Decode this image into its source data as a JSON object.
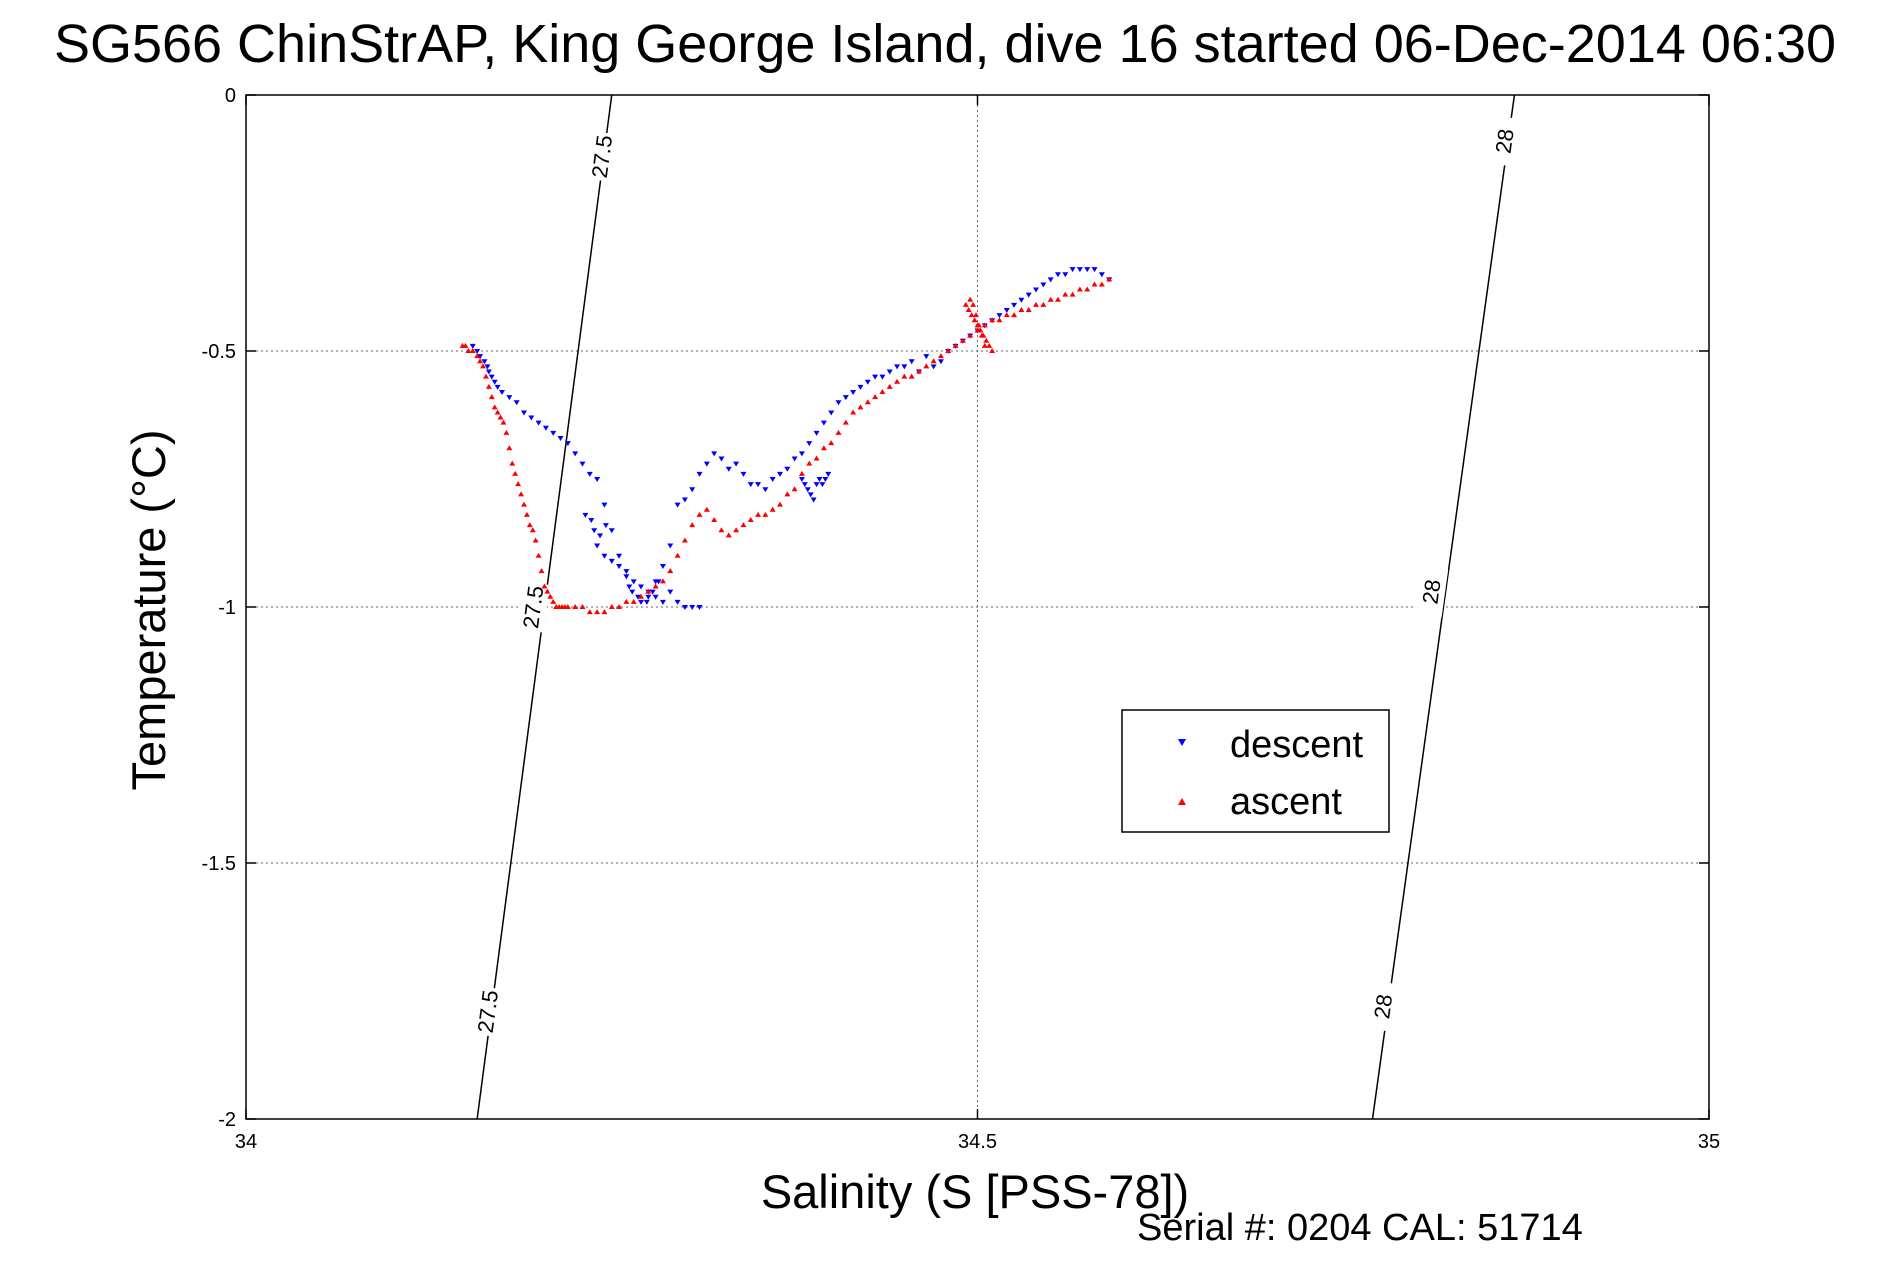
{
  "chart_data": {
    "type": "scatter",
    "title": "SG566 ChinStrAP, King George Island, dive 16 started 06-Dec-2014 06:30",
    "xlabel": "Salinity (S [PSS-78])",
    "ylabel": "Temperature (°C)",
    "xlim": [
      34,
      35
    ],
    "ylim": [
      -2,
      0
    ],
    "xticks": [
      34,
      34.5,
      35
    ],
    "xtick_labels": [
      "34",
      "34.5",
      "35"
    ],
    "yticks": [
      0,
      -0.5,
      -1,
      -1.5,
      -2
    ],
    "ytick_labels": [
      "0",
      "-0.5",
      "-1",
      "-1.5",
      "-2"
    ],
    "grid": true,
    "legend_position": "center-right",
    "series": [
      {
        "name": "descent",
        "color": "#0000ff",
        "marker": "triangle-down",
        "x": [
          34.155,
          34.158,
          34.16,
          34.163,
          34.165,
          34.166,
          34.168,
          34.17,
          34.172,
          34.175,
          34.18,
          34.185,
          34.19,
          34.195,
          34.2,
          34.205,
          34.21,
          34.215,
          34.22,
          34.225,
          34.23,
          34.235,
          34.24,
          34.245,
          34.232,
          34.236,
          34.238,
          34.242,
          34.246,
          34.25,
          34.255,
          34.26,
          34.264,
          34.27,
          34.275,
          34.28,
          34.285,
          34.29,
          34.295,
          34.3,
          34.305,
          34.31,
          34.315,
          34.32,
          34.325,
          34.33,
          34.335,
          34.34,
          34.345,
          34.35,
          34.355,
          34.36,
          34.365,
          34.37,
          34.375,
          34.38,
          34.385,
          34.39,
          34.395,
          34.4,
          34.405,
          34.41,
          34.415,
          34.42,
          34.425,
          34.43,
          34.435,
          34.44,
          34.445,
          34.45,
          34.455,
          34.46,
          34.465,
          34.47,
          34.475,
          34.48,
          34.485,
          34.49,
          34.495,
          34.5,
          34.505,
          34.51,
          34.515,
          34.52,
          34.525,
          34.53,
          34.535,
          34.54,
          34.545,
          34.55,
          34.555,
          34.56,
          34.565,
          34.57,
          34.575,
          34.58,
          34.585,
          34.59,
          34.38,
          34.382,
          34.384,
          34.386,
          34.388,
          34.39,
          34.392,
          34.394,
          34.396,
          34.398,
          34.29,
          34.295,
          34.3,
          34.305,
          34.31,
          34.285,
          34.28,
          34.275,
          34.27,
          34.265,
          34.26,
          34.255,
          34.25,
          34.245,
          34.24,
          34.262,
          34.268,
          34.274,
          34.278,
          34.282
        ],
        "y": [
          -0.49,
          -0.5,
          -0.51,
          -0.52,
          -0.53,
          -0.54,
          -0.55,
          -0.56,
          -0.57,
          -0.58,
          -0.59,
          -0.6,
          -0.62,
          -0.63,
          -0.64,
          -0.65,
          -0.66,
          -0.67,
          -0.68,
          -0.7,
          -0.72,
          -0.74,
          -0.75,
          -0.8,
          -0.82,
          -0.83,
          -0.85,
          -0.86,
          -0.84,
          -0.85,
          -0.9,
          -0.94,
          -0.97,
          -0.99,
          -0.98,
          -0.95,
          -0.92,
          -0.88,
          -0.8,
          -0.79,
          -0.77,
          -0.74,
          -0.72,
          -0.7,
          -0.71,
          -0.73,
          -0.72,
          -0.74,
          -0.76,
          -0.76,
          -0.77,
          -0.75,
          -0.74,
          -0.73,
          -0.71,
          -0.7,
          -0.68,
          -0.66,
          -0.64,
          -0.62,
          -0.6,
          -0.59,
          -0.58,
          -0.57,
          -0.56,
          -0.55,
          -0.55,
          -0.54,
          -0.53,
          -0.53,
          -0.52,
          -0.54,
          -0.51,
          -0.53,
          -0.52,
          -0.5,
          -0.49,
          -0.48,
          -0.47,
          -0.46,
          -0.45,
          -0.44,
          -0.43,
          -0.42,
          -0.41,
          -0.4,
          -0.39,
          -0.38,
          -0.37,
          -0.36,
          -0.35,
          -0.35,
          -0.34,
          -0.34,
          -0.34,
          -0.34,
          -0.35,
          -0.36,
          -0.75,
          -0.76,
          -0.77,
          -0.78,
          -0.79,
          -0.76,
          -0.75,
          -0.76,
          -0.75,
          -0.74,
          -0.97,
          -0.99,
          -1.0,
          -1.0,
          -1.0,
          -0.99,
          -0.98,
          -0.97,
          -0.96,
          -0.95,
          -0.93,
          -0.92,
          -0.91,
          -0.9,
          -0.88,
          -0.96,
          -0.98,
          -0.99,
          -0.97,
          -0.95
        ]
      },
      {
        "name": "ascent",
        "color": "#ff0000",
        "marker": "triangle-up",
        "x": [
          34.148,
          34.15,
          34.152,
          34.155,
          34.158,
          34.16,
          34.162,
          34.164,
          34.166,
          34.168,
          34.17,
          34.172,
          34.174,
          34.176,
          34.178,
          34.18,
          34.182,
          34.184,
          34.186,
          34.188,
          34.19,
          34.192,
          34.194,
          34.196,
          34.198,
          34.2,
          34.202,
          34.204,
          34.206,
          34.208,
          34.21,
          34.212,
          34.214,
          34.216,
          34.218,
          34.22,
          34.225,
          34.23,
          34.235,
          34.24,
          34.245,
          34.25,
          34.255,
          34.26,
          34.265,
          34.27,
          34.275,
          34.28,
          34.285,
          34.29,
          34.295,
          34.3,
          34.305,
          34.31,
          34.315,
          34.32,
          34.325,
          34.33,
          34.335,
          34.34,
          34.345,
          34.35,
          34.355,
          34.36,
          34.365,
          34.37,
          34.375,
          34.38,
          34.385,
          34.39,
          34.395,
          34.4,
          34.405,
          34.41,
          34.415,
          34.42,
          34.425,
          34.43,
          34.435,
          34.44,
          34.445,
          34.45,
          34.455,
          34.46,
          34.465,
          34.47,
          34.475,
          34.48,
          34.485,
          34.49,
          34.495,
          34.5,
          34.505,
          34.51,
          34.515,
          34.52,
          34.525,
          34.53,
          34.535,
          34.54,
          34.545,
          34.55,
          34.555,
          34.56,
          34.565,
          34.57,
          34.575,
          34.58,
          34.585,
          34.59,
          34.492,
          34.494,
          34.496,
          34.498,
          34.5,
          34.502,
          34.504,
          34.506,
          34.508,
          34.51,
          34.495,
          34.497,
          34.499,
          34.501,
          34.503,
          34.505
        ],
        "y": [
          -0.49,
          -0.49,
          -0.5,
          -0.5,
          -0.51,
          -0.52,
          -0.53,
          -0.55,
          -0.57,
          -0.59,
          -0.61,
          -0.62,
          -0.63,
          -0.64,
          -0.66,
          -0.69,
          -0.72,
          -0.74,
          -0.76,
          -0.78,
          -0.8,
          -0.82,
          -0.84,
          -0.85,
          -0.87,
          -0.9,
          -0.93,
          -0.96,
          -0.97,
          -0.98,
          -0.99,
          -1.0,
          -1.0,
          -1.0,
          -1.0,
          -1.0,
          -1.0,
          -1.0,
          -1.01,
          -1.01,
          -1.01,
          -1.0,
          -1.0,
          -0.99,
          -0.99,
          -0.98,
          -0.97,
          -0.96,
          -0.95,
          -0.93,
          -0.9,
          -0.87,
          -0.84,
          -0.82,
          -0.81,
          -0.83,
          -0.85,
          -0.86,
          -0.85,
          -0.84,
          -0.83,
          -0.82,
          -0.82,
          -0.81,
          -0.8,
          -0.78,
          -0.77,
          -0.74,
          -0.72,
          -0.71,
          -0.69,
          -0.68,
          -0.66,
          -0.64,
          -0.62,
          -0.61,
          -0.6,
          -0.59,
          -0.58,
          -0.57,
          -0.56,
          -0.55,
          -0.55,
          -0.54,
          -0.53,
          -0.52,
          -0.51,
          -0.5,
          -0.49,
          -0.48,
          -0.47,
          -0.46,
          -0.45,
          -0.44,
          -0.44,
          -0.43,
          -0.43,
          -0.42,
          -0.42,
          -0.41,
          -0.41,
          -0.4,
          -0.4,
          -0.39,
          -0.39,
          -0.38,
          -0.38,
          -0.37,
          -0.37,
          -0.36,
          -0.41,
          -0.42,
          -0.43,
          -0.44,
          -0.45,
          -0.46,
          -0.47,
          -0.48,
          -0.49,
          -0.5,
          -0.4,
          -0.41,
          -0.43,
          -0.45,
          -0.47,
          -0.49
        ]
      }
    ],
    "density_contours": [
      {
        "label": "27.5",
        "points": [
          [
            34.158,
            -2
          ],
          [
            34.25,
            0
          ]
        ],
        "label_positions": [
          [
            34.243,
            -0.12
          ],
          [
            34.196,
            -1.0
          ],
          [
            34.165,
            -1.79
          ]
        ]
      },
      {
        "label": "28",
        "points": [
          [
            34.77,
            -2
          ],
          [
            34.867,
            0
          ]
        ],
        "label_positions": [
          [
            34.86,
            -0.09
          ],
          [
            34.81,
            -0.97
          ],
          [
            34.777,
            -1.78
          ]
        ]
      }
    ]
  },
  "footer": {
    "serial": "Serial #: 0204  CAL: 51714"
  }
}
